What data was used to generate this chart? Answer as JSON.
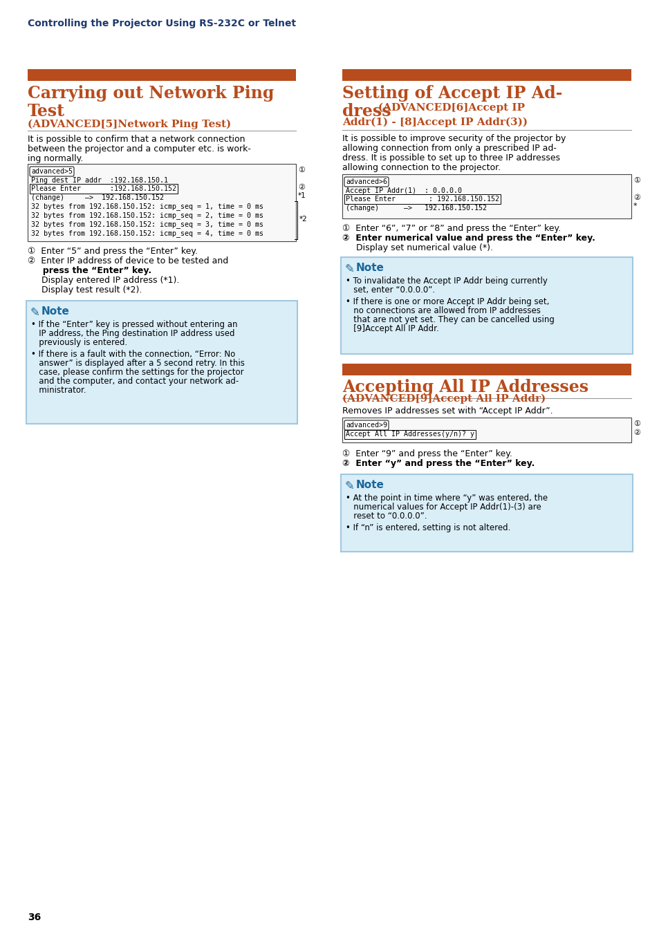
{
  "page_bg": "#ffffff",
  "header_color": "#1e3a6e",
  "header_text": "Controlling the Projector Using RS-232C or Telnet",
  "red_bar_color": "#b84c1c",
  "section_title_color": "#b84c1c",
  "note_bg": "#daeef8",
  "note_border_color": "#a0c8e0",
  "body_text_color": "#000000",
  "page_number": "36",
  "left": {
    "title1": "Carrying out Network Ping",
    "title2": "Test",
    "subtitle": "(ADVANCED[5]Network Ping Test)",
    "body1": "It is possible to confirm that a network connection",
    "body2": "between the projector and a computer etc. is work-",
    "body3": "ing normally.",
    "term_lines": [
      "advanced>5",
      "Ping dest IP addr  :192.168.150.1",
      "Please Enter       :192.168.150.152",
      "(change)     —>  192.168.150.152",
      "32 bytes from 192.168.150.152: icmp_seq = 1, time = 0 ms",
      "32 bytes from 192.168.150.152: icmp_seq = 2, time = 0 ms",
      "32 bytes from 192.168.150.152: icmp_seq = 3, time = 0 ms",
      "32 bytes from 192.168.150.152: icmp_seq = 4, time = 0 ms"
    ],
    "step1": "①  Enter “5” and press the “Enter” key.",
    "step2a": "②  Enter IP address of device to be tested and",
    "step2b": "     press the “Enter” key.",
    "step3": "     Display entered IP address (*1).",
    "step4": "     Display test result (*2).",
    "note_b1a": "• If the “Enter” key is pressed without entering an",
    "note_b1b": "   IP address, the Ping destination IP address used",
    "note_b1c": "   previously is entered.",
    "note_b2a": "• If there is a fault with the connection, “Error: No",
    "note_b2b": "   answer” is displayed after a 5 second retry. In this",
    "note_b2c": "   case, please confirm the settings for the projector",
    "note_b2d": "   and the computer, and contact your network ad-",
    "note_b2e": "   ministrator."
  },
  "right": {
    "title1": "Setting of Accept IP Ad-",
    "title2a": "dress ",
    "title2b": "(ADVANCED[6]Accept IP",
    "title3": "Addr(1) - [8]Accept IP Addr(3))",
    "body1": "It is possible to improve security of the projector by",
    "body2": "allowing connection from only a prescribed IP ad-",
    "body3": "dress. It is possible to set up to three IP addresses",
    "body4": "allowing connection to the projector.",
    "term_lines": [
      "advanced>6",
      "Accept IP Addr(1)  : 0.0.0.0",
      "Please Enter        : 192.168.150.152",
      "(change)      —>   192.168.150.152"
    ],
    "step1": "①  Enter “6”, “7” or “8” and press the “Enter” key.",
    "step2": "②  Enter numerical value and press the “Enter” key.",
    "step3": "     Display set numerical value (*).",
    "note_b1a": "• To invalidate the Accept IP Addr being currently",
    "note_b1b": "   set, enter “0.0.0.0”.",
    "note_b2a": "• If there is one or more Accept IP Addr being set,",
    "note_b2b": "   no connections are allowed from IP addresses",
    "note_b2c": "   that are not yet set. They can be cancelled using",
    "note_b2d": "   [9]Accept All IP Addr.",
    "s2_title": "Accepting All IP Addresses",
    "s2_sub": "(ADVANCED[9]Accept All IP Addr)",
    "s2_body": "Removes IP addresses set with “Accept IP Addr”.",
    "s2_term": [
      "advanced>9",
      "Accept All IP Addresses(y/n)? y"
    ],
    "s2_step1": "①  Enter “9” and press the “Enter” key.",
    "s2_step2": "②  Enter “y” and press the “Enter” key.",
    "s2_note_b1a": "• At the point in time where “y” was entered, the",
    "s2_note_b1b": "   numerical values for Accept IP Addr(1)-(3) are",
    "s2_note_b1c": "   reset to “0.0.0.0”.",
    "s2_note_b2": "• If “n” is entered, setting is not altered."
  }
}
